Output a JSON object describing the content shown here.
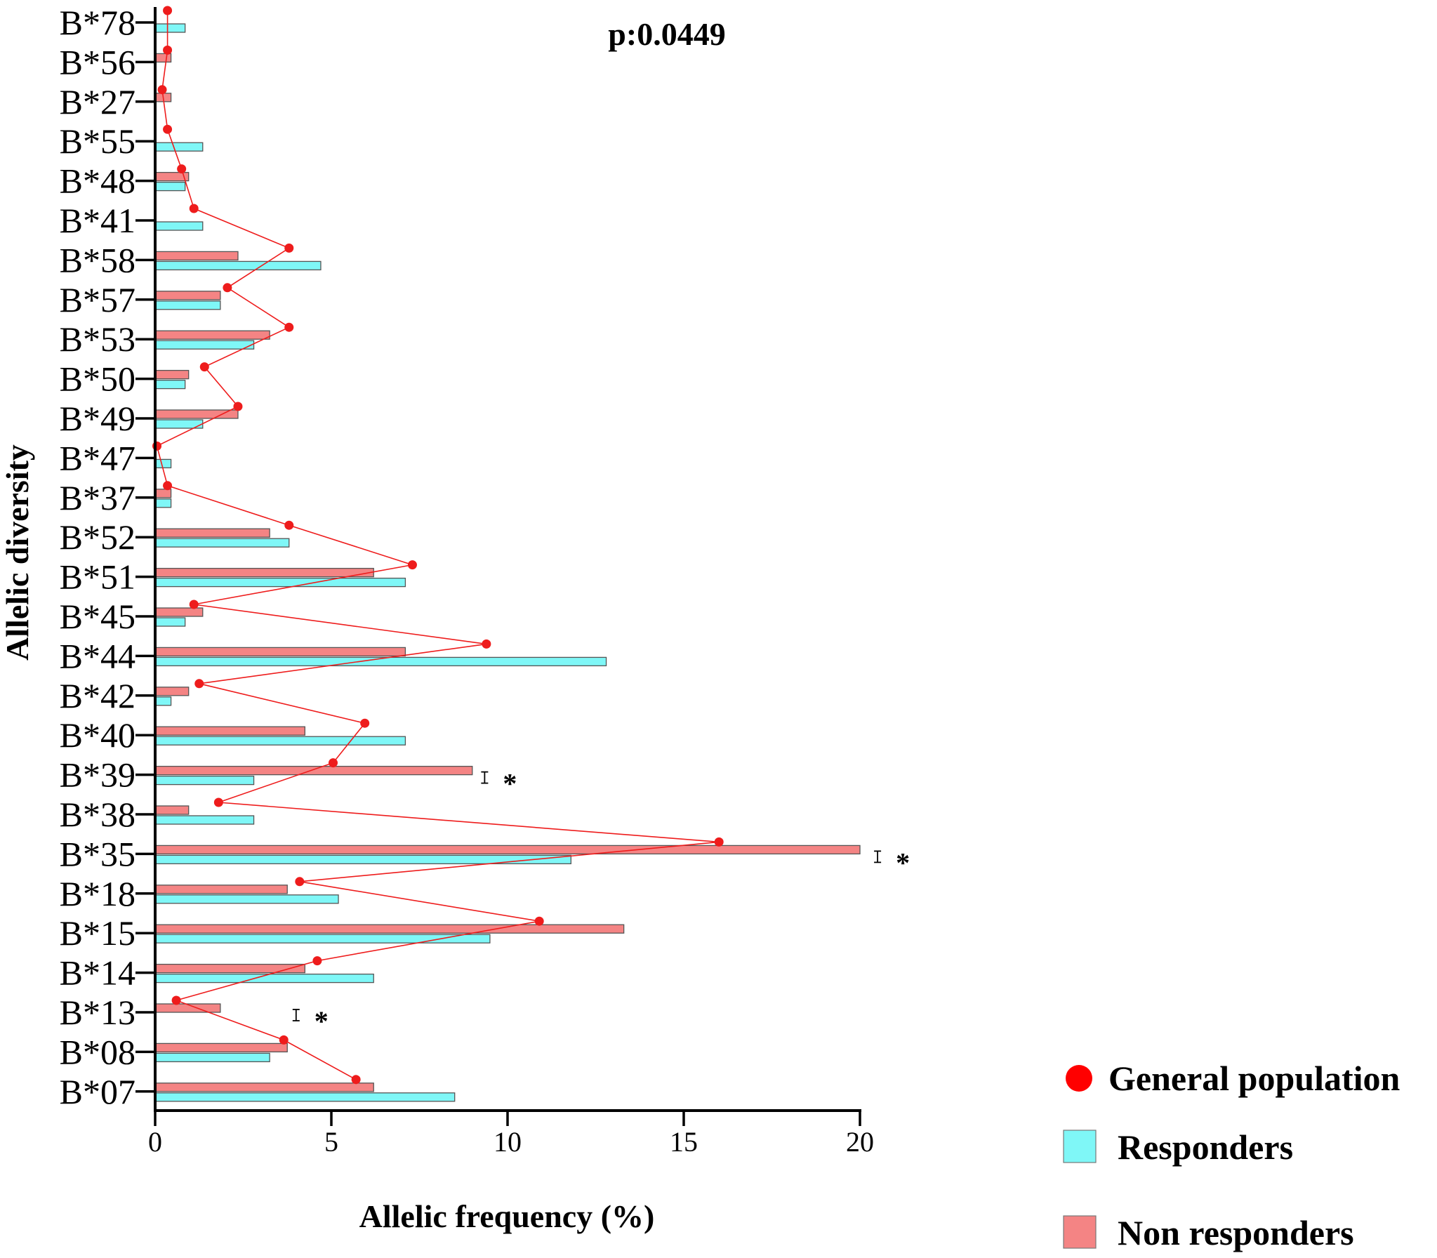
{
  "chart_data": {
    "type": "bar",
    "orientation": "horizontal",
    "title": "",
    "annotation": "p:0.0449",
    "xlabel": "Allelic frequency (%)",
    "ylabel": "Allelic diversity",
    "xlim": [
      0,
      20
    ],
    "xticks": [
      0,
      5,
      10,
      15,
      20
    ],
    "categories": [
      "B*78",
      "B*56",
      "B*27",
      "B*55",
      "B*48",
      "B*41",
      "B*58",
      "B*57",
      "B*53",
      "B*50",
      "B*49",
      "B*47",
      "B*37",
      "B*52",
      "B*51",
      "B*45",
      "B*44",
      "B*42",
      "B*40",
      "B*39",
      "B*38",
      "B*35",
      "B*18",
      "B*15",
      "B*14",
      "B*13",
      "B*08",
      "B*07"
    ],
    "series": [
      {
        "name": "Non responders",
        "kind": "bar",
        "color": "#f48484",
        "values": [
          0,
          0.45,
          0.45,
          0,
          0.95,
          0,
          2.35,
          1.85,
          3.25,
          0.95,
          2.35,
          0,
          0.45,
          3.25,
          6.2,
          1.35,
          7.1,
          0.95,
          4.25,
          9.0,
          0.95,
          20.0,
          3.75,
          13.3,
          4.25,
          1.85,
          3.75,
          6.2
        ]
      },
      {
        "name": "Responders",
        "kind": "bar",
        "color": "#7ff7f7",
        "values": [
          0.85,
          0,
          0,
          1.35,
          0.85,
          1.35,
          4.7,
          1.85,
          2.8,
          0.85,
          1.35,
          0.45,
          0.45,
          3.8,
          7.1,
          0.85,
          12.8,
          0.45,
          7.1,
          2.8,
          2.8,
          11.8,
          5.2,
          9.5,
          6.2,
          0,
          3.25,
          8.5
        ]
      },
      {
        "name": "General population",
        "kind": "line",
        "color": "#ee1c1c",
        "values": [
          0.35,
          0.35,
          0.2,
          0.35,
          0.75,
          1.1,
          3.8,
          2.05,
          3.8,
          1.4,
          2.35,
          0.05,
          0.35,
          3.8,
          7.3,
          1.1,
          9.4,
          1.25,
          5.95,
          5.05,
          1.8,
          16.0,
          4.1,
          10.9,
          4.6,
          0.6,
          3.65,
          5.7
        ]
      }
    ],
    "significance": [
      {
        "category": "B*39",
        "x": 9.35,
        "label": "*"
      },
      {
        "category": "B*35",
        "x": 20.5,
        "label": "*"
      },
      {
        "category": "B*13",
        "x": 4.0,
        "label": "*"
      }
    ],
    "legend": {
      "position": "bottom-right",
      "entries": [
        {
          "label": "General population",
          "symbol": "dot",
          "color": "#ff0000"
        },
        {
          "label": "Responders",
          "symbol": "box",
          "color": "#7ff7f7"
        },
        {
          "label": "Non responders",
          "symbol": "box",
          "color": "#f48484"
        }
      ]
    }
  }
}
